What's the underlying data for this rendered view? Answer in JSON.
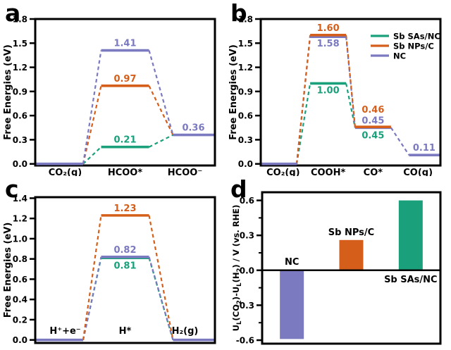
{
  "figure_background": "#ffffff",
  "colors": {
    "green": "#1ba07c",
    "orange": "#d55f1a",
    "purple": "#7b79c0",
    "axis": "#000000",
    "text": "#000000"
  },
  "chart_data": [
    {
      "panel": "a",
      "type": "line",
      "subtype": "free-energy-diagram",
      "ylabel": "Free Energies (eV)",
      "ylim": [
        -0.02,
        1.8
      ],
      "yticks": [
        0.0,
        0.3,
        0.6,
        0.9,
        1.2,
        1.5,
        1.8
      ],
      "categories": [
        "CO₂(g)",
        "HCOO*",
        "HCOO⁻"
      ],
      "series": [
        {
          "name": "Sb SAs/NC",
          "color": "green",
          "values": [
            0.0,
            0.21,
            0.36
          ],
          "draw_level": [
            false,
            true,
            false
          ],
          "point_labels": [
            null,
            {
              "text": "0.21",
              "dy": -6
            },
            null
          ]
        },
        {
          "name": "Sb NPs/C",
          "color": "orange",
          "values": [
            0.0,
            0.97,
            0.36
          ],
          "draw_level": [
            false,
            true,
            false
          ],
          "point_labels": [
            null,
            {
              "text": "0.97",
              "dy": -6
            },
            null
          ]
        },
        {
          "name": "NC",
          "color": "purple",
          "values": [
            0.0,
            1.41,
            0.36
          ],
          "draw_level": [
            true,
            true,
            true
          ],
          "point_labels": [
            null,
            {
              "text": "1.41",
              "dy": -6
            },
            {
              "text": "0.36",
              "dy": -6
            }
          ]
        }
      ]
    },
    {
      "panel": "b",
      "type": "line",
      "subtype": "free-energy-diagram",
      "ylabel": "Free Energies (eV)",
      "ylim": [
        -0.02,
        1.8
      ],
      "yticks": [
        0.0,
        0.3,
        0.6,
        0.9,
        1.2,
        1.5,
        1.8
      ],
      "categories": [
        "CO₂(g)",
        "COOH*",
        "CO*",
        "CO(g)"
      ],
      "legend": [
        {
          "label": "Sb SAs/NC",
          "color": "green"
        },
        {
          "label": "Sb NPs/C",
          "color": "orange"
        },
        {
          "label": "NC",
          "color": "purple"
        }
      ],
      "series": [
        {
          "name": "Sb SAs/NC",
          "color": "green",
          "values": [
            0.0,
            1.0,
            0.45,
            null
          ],
          "draw_level": [
            false,
            true,
            false,
            false
          ],
          "point_labels": [
            null,
            {
              "text": "1.00",
              "dy": 14
            },
            {
              "text": "0.45",
              "dy": 15
            },
            null
          ]
        },
        {
          "name": "NC",
          "color": "purple",
          "values": [
            0.0,
            1.58,
            0.45,
            0.11
          ],
          "draw_level": [
            true,
            true,
            true,
            true
          ],
          "point_labels": [
            null,
            {
              "text": "1.58",
              "dy": 14
            },
            {
              "text": "0.45",
              "dy": -6
            },
            {
              "text": "0.11",
              "dy": -6
            }
          ]
        },
        {
          "name": "Sb NPs/C",
          "color": "orange",
          "values": [
            0.0,
            1.6,
            0.46,
            null
          ],
          "draw_level": [
            false,
            true,
            true,
            false
          ],
          "point_labels": [
            null,
            {
              "text": "1.60",
              "dy": -6
            },
            {
              "text": "0.46",
              "dy": -20
            },
            null
          ]
        }
      ]
    },
    {
      "panel": "c",
      "type": "line",
      "subtype": "free-energy-diagram",
      "ylabel": "Free Energies (eV)",
      "ylim": [
        -0.03,
        1.41
      ],
      "yticks": [
        0.0,
        0.2,
        0.4,
        0.6,
        0.8,
        1.0,
        1.2,
        1.4
      ],
      "categories": [
        "H⁺+e⁻",
        "H*",
        "H₂(g)"
      ],
      "categories_inside": true,
      "series": [
        {
          "name": "Sb SAs/NC",
          "color": "green",
          "values": [
            0.0,
            0.81,
            0.0
          ],
          "draw_level": [
            false,
            true,
            false
          ],
          "point_labels": [
            null,
            {
              "text": "0.81",
              "dy": 15
            },
            null
          ]
        },
        {
          "name": "NC",
          "color": "purple",
          "values": [
            0.0,
            0.82,
            0.0
          ],
          "draw_level": [
            true,
            true,
            true
          ],
          "point_labels": [
            null,
            {
              "text": "0.82",
              "dy": -6
            },
            null
          ]
        },
        {
          "name": "Sb NPs/C",
          "color": "orange",
          "values": [
            0.0,
            1.23,
            0.0
          ],
          "draw_level": [
            false,
            true,
            false
          ],
          "point_labels": [
            null,
            {
              "text": "1.23",
              "dy": -6
            },
            null
          ]
        }
      ]
    },
    {
      "panel": "d",
      "type": "bar",
      "ylabel_parts": [
        {
          "t": "U"
        },
        {
          "t": "L",
          "sub": true
        },
        {
          "t": "(CO"
        },
        {
          "t": "2",
          "sub": true
        },
        {
          "t": ")-U"
        },
        {
          "t": "L",
          "sub": true
        },
        {
          "t": "(H"
        },
        {
          "t": "2",
          "sub": true
        },
        {
          "t": ") / V (vs. RHE)"
        }
      ],
      "ylim": [
        -0.63,
        0.67
      ],
      "yticks": [
        0.6,
        0.3,
        0.0,
        -0.3,
        -0.6
      ],
      "yticks_minor": [
        0.45,
        0.15,
        -0.15,
        -0.45
      ],
      "categories": [
        "NC",
        "Sb NPs/C",
        "Sb SAs/NC"
      ],
      "values": [
        -0.59,
        0.26,
        0.6
      ],
      "bar_colors": [
        "purple",
        "orange",
        "green"
      ],
      "bar_labels": [
        {
          "text": "NC",
          "pos": "above-baseline"
        },
        {
          "text": "Sb NPs/C",
          "pos": "above-bar"
        },
        {
          "text": "Sb SAs/NC",
          "pos": "below-baseline"
        }
      ]
    }
  ]
}
